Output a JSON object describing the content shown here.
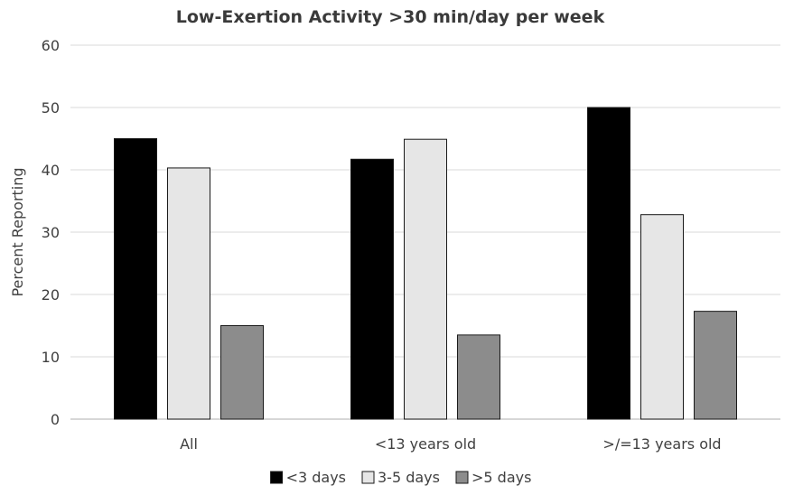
{
  "chart_data": {
    "type": "bar",
    "title": "Low-Exertion Activity >30 min/day per week",
    "xlabel": "",
    "ylabel": "Percent Reporting",
    "ylim": [
      0,
      60
    ],
    "yticks": [
      0,
      10,
      20,
      30,
      40,
      50,
      60
    ],
    "grid": true,
    "legend_position": "bottom",
    "categories": [
      "All",
      "<13 years old",
      ">/=13 years old"
    ],
    "series": [
      {
        "name": "<3 days",
        "color": "#000000",
        "values": [
          45,
          41.7,
          50
        ]
      },
      {
        "name": "3-5 days",
        "color": "#e6e6e6",
        "values": [
          40.3,
          44.9,
          32.8
        ]
      },
      {
        "name": ">5 days",
        "color": "#8c8c8c",
        "values": [
          15,
          13.5,
          17.3
        ]
      }
    ]
  }
}
